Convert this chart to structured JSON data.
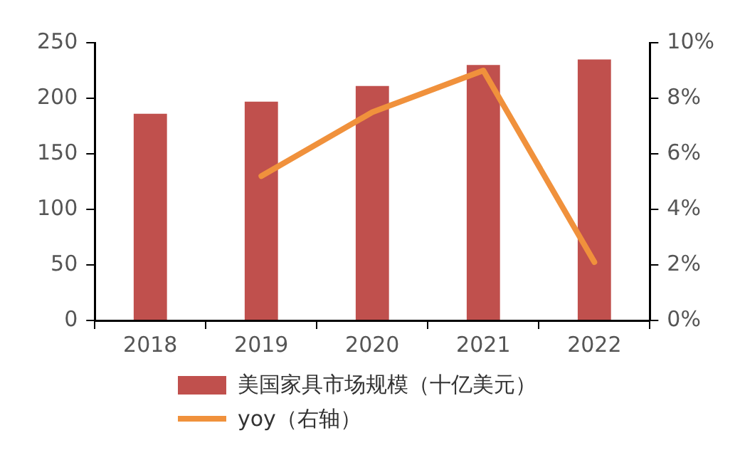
{
  "chart_data": {
    "type": "bar",
    "categories": [
      "2018",
      "2019",
      "2020",
      "2021",
      "2022"
    ],
    "series": [
      {
        "name": "美国家具市场规模（十亿美元）",
        "color": "#c0504d",
        "values": [
          186,
          197,
          211,
          230,
          235
        ]
      },
      {
        "name": "yoy（右轴）",
        "type": "line",
        "axis": "y2",
        "color": "#f0913c",
        "values": [
          null,
          5.2,
          7.5,
          9.0,
          2.1
        ]
      }
    ],
    "ylim": [
      0,
      250
    ],
    "yticks": [
      0,
      50,
      100,
      150,
      200,
      250
    ],
    "y2lim": [
      0,
      10
    ],
    "y2ticks": [
      {
        "value": 0,
        "label": "0%"
      },
      {
        "value": 2,
        "label": "2%"
      },
      {
        "value": 4,
        "label": "4%"
      },
      {
        "value": 6,
        "label": "6%"
      },
      {
        "value": 8,
        "label": "8%"
      },
      {
        "value": 10,
        "label": "10%"
      }
    ],
    "grid": false,
    "legend": "bottom",
    "marker": "none",
    "line_style": "solid"
  }
}
